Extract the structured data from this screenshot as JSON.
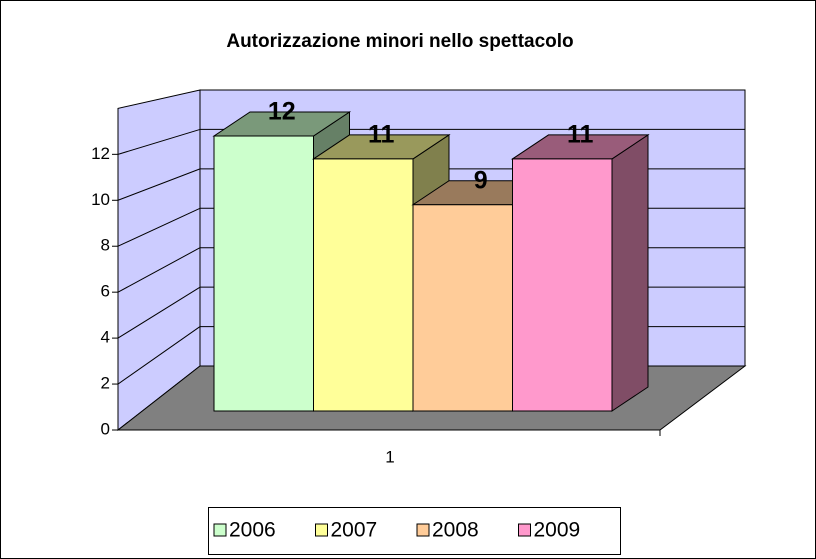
{
  "chart_data": {
    "type": "bar3d",
    "title": "Autorizzazione minori nello spettacolo",
    "categories": [
      "1"
    ],
    "series": [
      {
        "name": "2006",
        "color": "#ccffcc",
        "values": [
          12
        ]
      },
      {
        "name": "2007",
        "color": "#ffff99",
        "values": [
          11
        ]
      },
      {
        "name": "2008",
        "color": "#ffcc99",
        "values": [
          9
        ]
      },
      {
        "name": "2009",
        "color": "#ff99cc",
        "values": [
          11
        ]
      }
    ],
    "ylim": [
      0,
      14
    ],
    "yticks": [
      0,
      2,
      4,
      6,
      8,
      10,
      12
    ],
    "grid": true,
    "wall_color": "#ccccff",
    "floor_color": "#808080",
    "legend": "bottom"
  }
}
